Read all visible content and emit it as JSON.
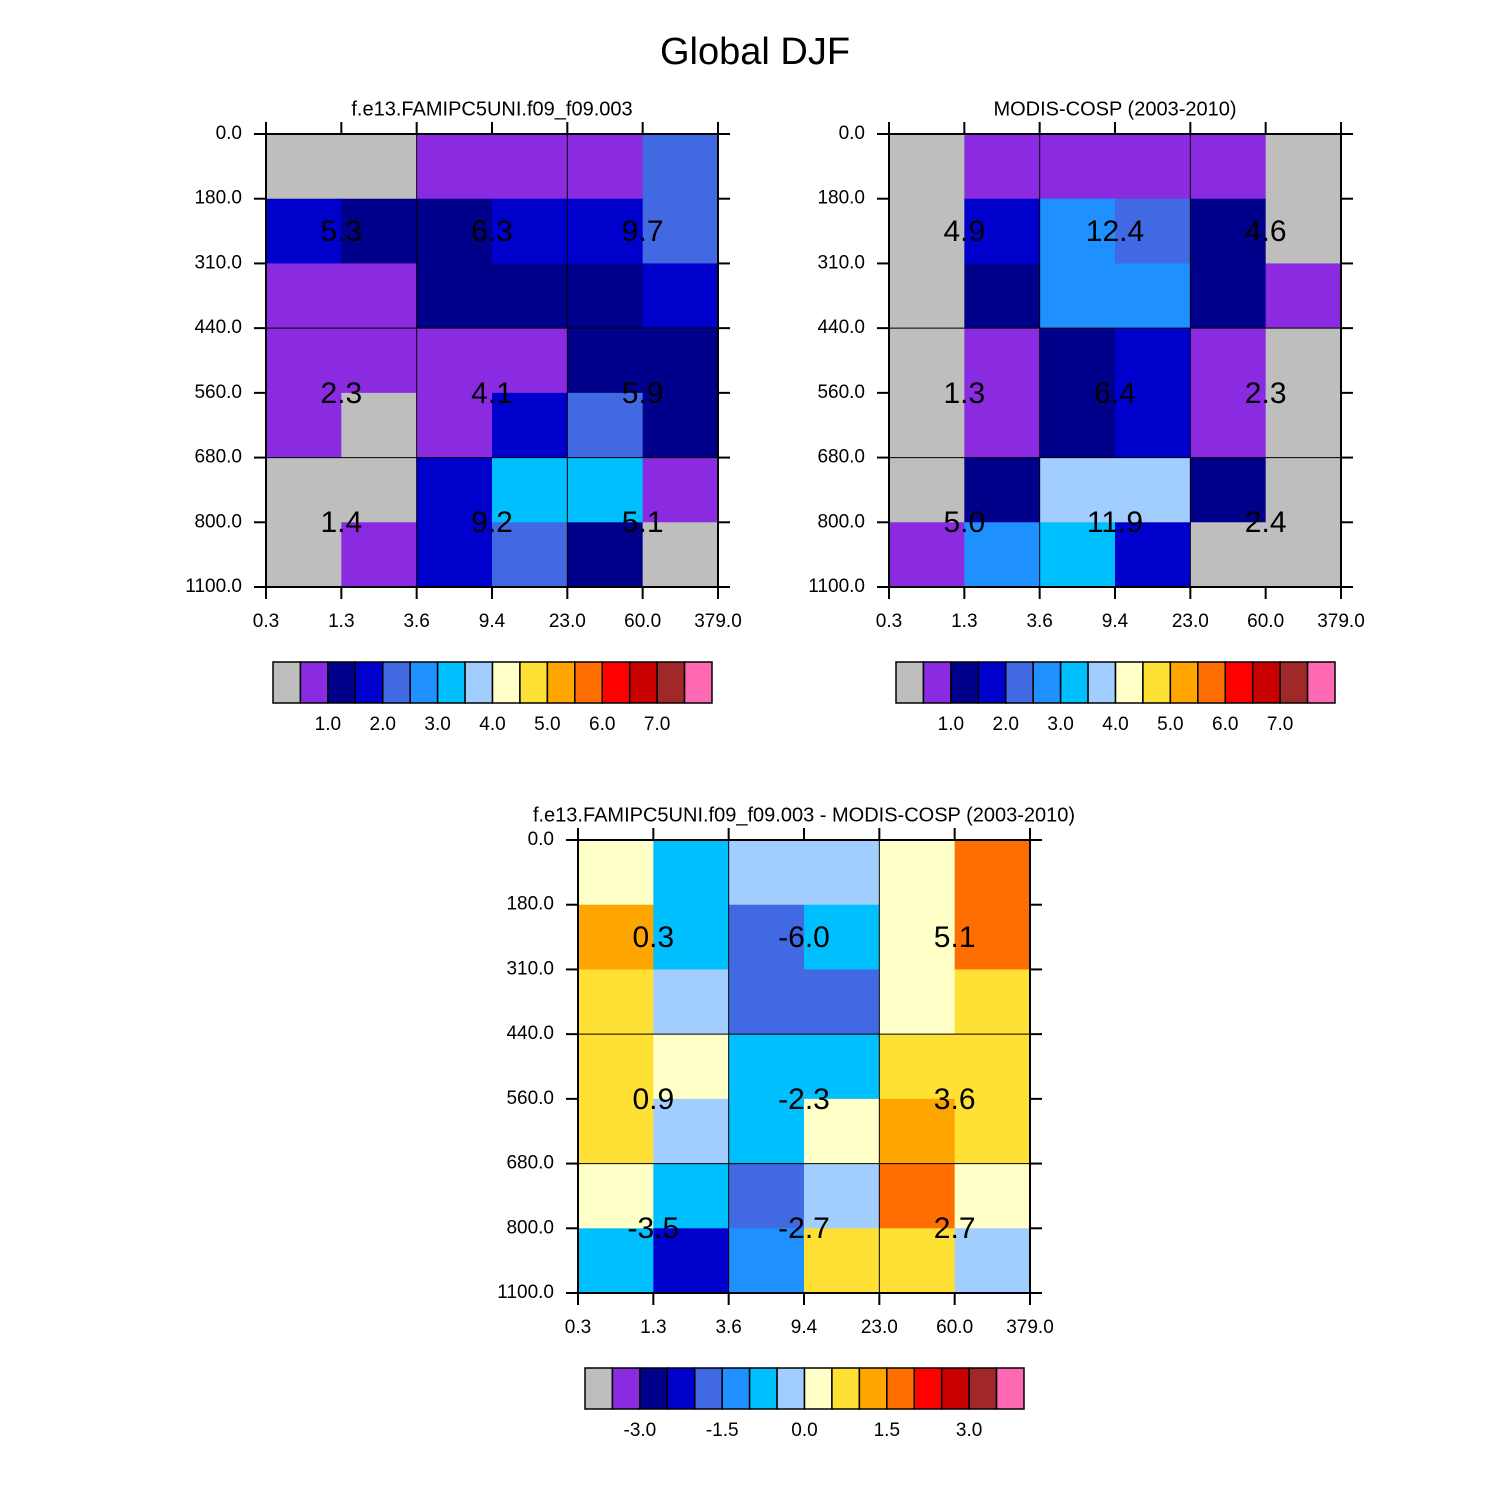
{
  "title": "Global DJF",
  "chart_data": [
    {
      "type": "heatmap",
      "title": "f.e13.FAMIPC5UNI.f09_f09.003",
      "xticks": [
        0.3,
        1.3,
        3.6,
        9.4,
        {
          "value": 23,
          "label": "23.0"
        },
        {
          "value": 60,
          "label": "60.0"
        },
        {
          "value": 379,
          "label": "379.0"
        }
      ],
      "yticks": [
        {
          "value": 0,
          "label": "0.0"
        },
        {
          "value": 180,
          "label": "180.0"
        },
        {
          "value": 310,
          "label": "310.0"
        },
        {
          "value": 440,
          "label": "440.0"
        },
        {
          "value": 560,
          "label": "560.0"
        },
        {
          "value": 680,
          "label": "680.0"
        },
        {
          "value": 800,
          "label": "800.0"
        },
        {
          "value": 1100,
          "label": "1100.0"
        }
      ],
      "z": [
        [
          0.25,
          0.25,
          0.75,
          0.75,
          0.75,
          2.25
        ],
        [
          1.75,
          1.25,
          1.25,
          1.75,
          1.75,
          2.25
        ],
        [
          0.75,
          0.75,
          1.25,
          1.25,
          1.25,
          1.75
        ],
        [
          0.75,
          0.75,
          0.75,
          0.75,
          1.25,
          1.25
        ],
        [
          0.75,
          0.25,
          0.75,
          1.75,
          2.25,
          1.25
        ],
        [
          0.25,
          0.25,
          1.75,
          3.25,
          3.25,
          0.75
        ],
        [
          0.25,
          0.75,
          1.75,
          2.25,
          1.25,
          0.25
        ]
      ],
      "block_labels": [
        [
          5.3,
          6.3,
          9.7
        ],
        [
          2.3,
          4.1,
          5.9
        ],
        [
          1.4,
          9.2,
          5.1
        ]
      ],
      "levels": [
        0.5,
        1,
        1.5,
        2,
        2.5,
        3,
        3.5,
        4,
        4.5,
        5,
        5.5,
        6,
        6.5,
        7,
        7.5
      ],
      "colors": [
        "#bebebe",
        "#8a2be2",
        "#00008b",
        "#0000cd",
        "#4169e1",
        "#1e90ff",
        "#00bfff",
        "#a2cdff",
        "#ffffc8",
        "#ffe135",
        "#ffa500",
        "#ff6e00",
        "#ff0000",
        "#c80000",
        "#a02828",
        "#ff69b4"
      ],
      "colorbar_ticks": [
        {
          "value": 1,
          "label": "1.0"
        },
        {
          "value": 2,
          "label": "2.0"
        },
        {
          "value": 3,
          "label": "3.0"
        },
        {
          "value": 4,
          "label": "4.0"
        },
        {
          "value": 5,
          "label": "5.0"
        },
        {
          "value": 6,
          "label": "6.0"
        },
        {
          "value": 7,
          "label": "7.0"
        }
      ]
    },
    {
      "type": "heatmap",
      "title": "MODIS-COSP (2003-2010)",
      "xticks": [
        0.3,
        1.3,
        3.6,
        9.4,
        {
          "value": 23,
          "label": "23.0"
        },
        {
          "value": 60,
          "label": "60.0"
        },
        {
          "value": 379,
          "label": "379.0"
        }
      ],
      "yticks": [
        {
          "value": 0,
          "label": "0.0"
        },
        {
          "value": 180,
          "label": "180.0"
        },
        {
          "value": 310,
          "label": "310.0"
        },
        {
          "value": 440,
          "label": "440.0"
        },
        {
          "value": 560,
          "label": "560.0"
        },
        {
          "value": 680,
          "label": "680.0"
        },
        {
          "value": 800,
          "label": "800.0"
        },
        {
          "value": 1100,
          "label": "1100.0"
        }
      ],
      "z": [
        [
          0.25,
          0.75,
          0.75,
          0.75,
          0.75,
          0.25
        ],
        [
          0.25,
          1.75,
          2.75,
          2.25,
          1.25,
          0.25
        ],
        [
          0.25,
          1.25,
          2.75,
          2.75,
          1.25,
          0.75
        ],
        [
          0.25,
          0.75,
          1.25,
          1.75,
          0.75,
          0.25
        ],
        [
          0.25,
          0.75,
          1.25,
          1.75,
          0.75,
          0.25
        ],
        [
          0.25,
          1.25,
          3.75,
          3.75,
          1.25,
          0.25
        ],
        [
          0.75,
          2.75,
          3.25,
          1.75,
          0.25,
          0.25
        ]
      ],
      "block_labels": [
        [
          4.9,
          12.4,
          4.6
        ],
        [
          1.3,
          6.4,
          2.3
        ],
        [
          {
            "value": 5,
            "label": "5.0"
          },
          11.9,
          2.4
        ]
      ],
      "levels": [
        0.5,
        1,
        1.5,
        2,
        2.5,
        3,
        3.5,
        4,
        4.5,
        5,
        5.5,
        6,
        6.5,
        7,
        7.5
      ],
      "colors": [
        "#bebebe",
        "#8a2be2",
        "#00008b",
        "#0000cd",
        "#4169e1",
        "#1e90ff",
        "#00bfff",
        "#a2cdff",
        "#ffffc8",
        "#ffe135",
        "#ffa500",
        "#ff6e00",
        "#ff0000",
        "#c80000",
        "#a02828",
        "#ff69b4"
      ],
      "colorbar_ticks": [
        {
          "value": 1,
          "label": "1.0"
        },
        {
          "value": 2,
          "label": "2.0"
        },
        {
          "value": 3,
          "label": "3.0"
        },
        {
          "value": 4,
          "label": "4.0"
        },
        {
          "value": 5,
          "label": "5.0"
        },
        {
          "value": 6,
          "label": "6.0"
        },
        {
          "value": 7,
          "label": "7.0"
        }
      ]
    },
    {
      "type": "heatmap",
      "title": "f.e13.FAMIPC5UNI.f09_f09.003 - MODIS-COSP (2003-2010)",
      "xticks": [
        0.3,
        1.3,
        3.6,
        9.4,
        {
          "value": 23,
          "label": "23.0"
        },
        {
          "value": 60,
          "label": "60.0"
        },
        {
          "value": 379,
          "label": "379.0"
        }
      ],
      "yticks": [
        {
          "value": 0,
          "label": "0.0"
        },
        {
          "value": 180,
          "label": "180.0"
        },
        {
          "value": 310,
          "label": "310.0"
        },
        {
          "value": 440,
          "label": "440.0"
        },
        {
          "value": 560,
          "label": "560.0"
        },
        {
          "value": 680,
          "label": "680.0"
        },
        {
          "value": 800,
          "label": "800.0"
        },
        {
          "value": 1100,
          "label": "1100.0"
        }
      ],
      "z": [
        [
          0.25,
          -0.75,
          -0.25,
          -0.25,
          0.25,
          1.75
        ],
        [
          1.25,
          -0.75,
          -1.75,
          -0.75,
          0.25,
          1.75
        ],
        [
          0.75,
          -0.25,
          -1.75,
          -1.75,
          0.25,
          0.75
        ],
        [
          0.75,
          0.25,
          -0.75,
          -0.75,
          0.75,
          0.75
        ],
        [
          0.75,
          -0.25,
          -0.75,
          0.25,
          1.25,
          0.75
        ],
        [
          0.25,
          -0.75,
          -1.75,
          -0.25,
          1.75,
          0.25
        ],
        [
          -0.75,
          -2.25,
          -1.25,
          0.75,
          0.75,
          -0.25
        ]
      ],
      "block_labels": [
        [
          0.3,
          {
            "value": -6,
            "label": "-6.0"
          },
          5.1
        ],
        [
          0.9,
          -2.3,
          3.6
        ],
        [
          -3.5,
          -2.7,
          2.7
        ]
      ],
      "levels": [
        -3.5,
        -3,
        -2.5,
        -2,
        -1.5,
        -1,
        -0.5,
        0,
        0.5,
        1,
        1.5,
        2,
        2.5,
        3,
        3.5
      ],
      "colors": [
        "#bebebe",
        "#8a2be2",
        "#00008b",
        "#0000cd",
        "#4169e1",
        "#1e90ff",
        "#00bfff",
        "#a2cdff",
        "#ffffc8",
        "#ffe135",
        "#ffa500",
        "#ff6e00",
        "#ff0000",
        "#c80000",
        "#a02828",
        "#ff69b4"
      ],
      "colorbar_ticks": [
        {
          "value": -3,
          "label": "-3.0"
        },
        -1.5,
        {
          "value": 0,
          "label": "0.0"
        },
        1.5,
        {
          "value": 3,
          "label": "3.0"
        }
      ]
    }
  ]
}
